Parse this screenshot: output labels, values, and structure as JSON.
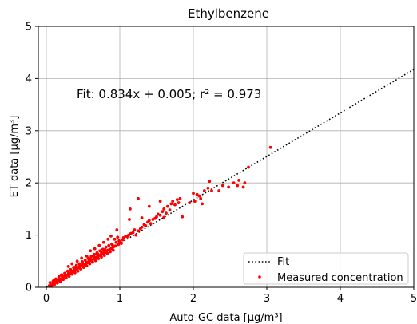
{
  "chart_data": {
    "type": "scatter",
    "title": "Ethylbenzene",
    "xlabel": "Auto-GC data [μg/m³]",
    "ylabel": "ET data [μg/m³]",
    "xlim": [
      0,
      5
    ],
    "ylim": [
      0,
      5
    ],
    "xticks": [
      "0",
      "1",
      "2",
      "3",
      "4",
      "5"
    ],
    "yticks": [
      "0",
      "1",
      "2",
      "3",
      "4",
      "5"
    ],
    "grid": true,
    "legend_position": "lower-right",
    "annotation": "Fit: 0.834x + 0.005; r² = 0.973",
    "fit": {
      "name": "Fit",
      "slope": 0.834,
      "intercept": 0.005,
      "color": "#000000",
      "style": "dotted"
    },
    "series": [
      {
        "name": "Measured concentration",
        "color": "#ff0000",
        "points": [
          [
            0.04,
            0.03
          ],
          [
            0.06,
            0.05
          ],
          [
            0.08,
            0.04
          ],
          [
            0.1,
            0.08
          ],
          [
            0.12,
            0.09
          ],
          [
            0.14,
            0.12
          ],
          [
            0.16,
            0.13
          ],
          [
            0.18,
            0.15
          ],
          [
            0.2,
            0.16
          ],
          [
            0.22,
            0.19
          ],
          [
            0.24,
            0.2
          ],
          [
            0.26,
            0.23
          ],
          [
            0.28,
            0.23
          ],
          [
            0.3,
            0.26
          ],
          [
            0.32,
            0.27
          ],
          [
            0.34,
            0.29
          ],
          [
            0.36,
            0.31
          ],
          [
            0.38,
            0.32
          ],
          [
            0.4,
            0.34
          ],
          [
            0.42,
            0.36
          ],
          [
            0.44,
            0.37
          ],
          [
            0.46,
            0.39
          ],
          [
            0.48,
            0.41
          ],
          [
            0.5,
            0.42
          ],
          [
            0.52,
            0.44
          ],
          [
            0.54,
            0.46
          ],
          [
            0.56,
            0.47
          ],
          [
            0.58,
            0.49
          ],
          [
            0.6,
            0.51
          ],
          [
            0.62,
            0.52
          ],
          [
            0.64,
            0.54
          ],
          [
            0.66,
            0.56
          ],
          [
            0.68,
            0.57
          ],
          [
            0.7,
            0.59
          ],
          [
            0.72,
            0.61
          ],
          [
            0.74,
            0.62
          ],
          [
            0.76,
            0.64
          ],
          [
            0.78,
            0.66
          ],
          [
            0.8,
            0.67
          ],
          [
            0.82,
            0.69
          ],
          [
            0.84,
            0.71
          ],
          [
            0.86,
            0.72
          ],
          [
            0.88,
            0.74
          ],
          [
            0.9,
            0.76
          ],
          [
            0.92,
            0.78
          ],
          [
            0.94,
            0.79
          ],
          [
            0.05,
            0.09
          ],
          [
            0.09,
            0.11
          ],
          [
            0.13,
            0.16
          ],
          [
            0.17,
            0.2
          ],
          [
            0.21,
            0.24
          ],
          [
            0.25,
            0.27
          ],
          [
            0.29,
            0.31
          ],
          [
            0.33,
            0.34
          ],
          [
            0.37,
            0.38
          ],
          [
            0.41,
            0.42
          ],
          [
            0.45,
            0.45
          ],
          [
            0.49,
            0.49
          ],
          [
            0.53,
            0.52
          ],
          [
            0.57,
            0.56
          ],
          [
            0.61,
            0.59
          ],
          [
            0.65,
            0.63
          ],
          [
            0.69,
            0.66
          ],
          [
            0.73,
            0.7
          ],
          [
            0.77,
            0.73
          ],
          [
            0.81,
            0.77
          ],
          [
            0.85,
            0.8
          ],
          [
            0.89,
            0.83
          ],
          [
            0.07,
            0.02
          ],
          [
            0.11,
            0.05
          ],
          [
            0.15,
            0.08
          ],
          [
            0.19,
            0.11
          ],
          [
            0.23,
            0.15
          ],
          [
            0.27,
            0.18
          ],
          [
            0.31,
            0.21
          ],
          [
            0.35,
            0.25
          ],
          [
            0.39,
            0.28
          ],
          [
            0.43,
            0.31
          ],
          [
            0.47,
            0.35
          ],
          [
            0.51,
            0.38
          ],
          [
            0.55,
            0.41
          ],
          [
            0.59,
            0.45
          ],
          [
            0.63,
            0.48
          ],
          [
            0.67,
            0.51
          ],
          [
            0.71,
            0.55
          ],
          [
            0.75,
            0.58
          ],
          [
            0.79,
            0.61
          ],
          [
            0.83,
            0.65
          ],
          [
            0.87,
            0.68
          ],
          [
            0.91,
            0.71
          ],
          [
            0.3,
            0.4
          ],
          [
            0.35,
            0.45
          ],
          [
            0.42,
            0.5
          ],
          [
            0.48,
            0.56
          ],
          [
            0.55,
            0.6
          ],
          [
            0.6,
            0.7
          ],
          [
            0.66,
            0.74
          ],
          [
            0.72,
            0.8
          ],
          [
            0.78,
            0.86
          ],
          [
            0.84,
            0.92
          ],
          [
            0.88,
            0.98
          ],
          [
            0.93,
            0.92
          ],
          [
            0.97,
            0.96
          ],
          [
            0.96,
            1.1
          ],
          [
            0.99,
            0.89
          ],
          [
            1.0,
            0.86
          ],
          [
            1.02,
            0.84
          ],
          [
            1.04,
            0.91
          ],
          [
            0.98,
            0.82
          ],
          [
            0.95,
            0.86
          ],
          [
            0.1,
            0.13
          ],
          [
            0.2,
            0.23
          ],
          [
            0.4,
            0.39
          ],
          [
            0.6,
            0.55
          ],
          [
            0.7,
            0.64
          ],
          [
            0.8,
            0.72
          ],
          [
            0.9,
            0.81
          ],
          [
            0.75,
            0.66
          ],
          [
            0.65,
            0.58
          ],
          [
            0.55,
            0.48
          ],
          [
            0.45,
            0.4
          ],
          [
            0.35,
            0.3
          ],
          [
            0.25,
            0.22
          ],
          [
            0.15,
            0.14
          ],
          [
            0.5,
            0.45
          ],
          [
            0.62,
            0.6
          ],
          [
            0.68,
            0.63
          ],
          [
            0.58,
            0.53
          ],
          [
            0.46,
            0.43
          ],
          [
            0.38,
            0.36
          ],
          [
            1.05,
            0.95
          ],
          [
            1.08,
            0.98
          ],
          [
            1.1,
            0.97
          ],
          [
            1.12,
            1.0
          ],
          [
            1.15,
            1.03
          ],
          [
            1.18,
            1.05
          ],
          [
            1.2,
            1.1
          ],
          [
            1.22,
            1.0
          ],
          [
            1.25,
            1.08
          ],
          [
            1.28,
            1.12
          ],
          [
            1.3,
            1.15
          ],
          [
            1.33,
            1.2
          ],
          [
            1.35,
            1.18
          ],
          [
            1.38,
            1.25
          ],
          [
            1.4,
            1.28
          ],
          [
            1.42,
            1.22
          ],
          [
            1.45,
            1.3
          ],
          [
            1.48,
            1.32
          ],
          [
            1.5,
            1.35
          ],
          [
            1.52,
            1.4
          ],
          [
            1.55,
            1.38
          ],
          [
            1.58,
            1.45
          ],
          [
            1.6,
            1.5
          ],
          [
            1.63,
            1.42
          ],
          [
            1.65,
            1.55
          ],
          [
            1.68,
            1.48
          ],
          [
            1.7,
            1.6
          ],
          [
            1.72,
            1.65
          ],
          [
            1.75,
            1.58
          ],
          [
            1.78,
            1.68
          ],
          [
            1.8,
            1.62
          ],
          [
            1.82,
            1.7
          ],
          [
            1.85,
            1.35
          ],
          [
            1.6,
            1.34
          ],
          [
            1.3,
            1.33
          ],
          [
            1.13,
            1.3
          ],
          [
            1.14,
            1.5
          ],
          [
            1.25,
            1.7
          ],
          [
            1.4,
            1.55
          ],
          [
            1.55,
            1.65
          ],
          [
            1.95,
            1.62
          ],
          [
            2.0,
            1.8
          ],
          [
            2.02,
            1.65
          ],
          [
            2.05,
            1.78
          ],
          [
            2.08,
            1.75
          ],
          [
            2.1,
            1.7
          ],
          [
            2.12,
            1.6
          ],
          [
            2.15,
            1.85
          ],
          [
            2.2,
            1.9
          ],
          [
            2.22,
            2.03
          ],
          [
            2.25,
            1.85
          ],
          [
            2.35,
            1.85
          ],
          [
            2.4,
            1.95
          ],
          [
            2.48,
            1.92
          ],
          [
            2.55,
            2.0
          ],
          [
            2.6,
            1.95
          ],
          [
            2.62,
            2.05
          ],
          [
            2.68,
            1.92
          ],
          [
            2.7,
            2.0
          ],
          [
            2.75,
            2.3
          ],
          [
            3.05,
            2.68
          ]
        ]
      }
    ],
    "legend": [
      {
        "label": "Fit",
        "kind": "line"
      },
      {
        "label": "Measured concentration",
        "kind": "marker"
      }
    ]
  }
}
